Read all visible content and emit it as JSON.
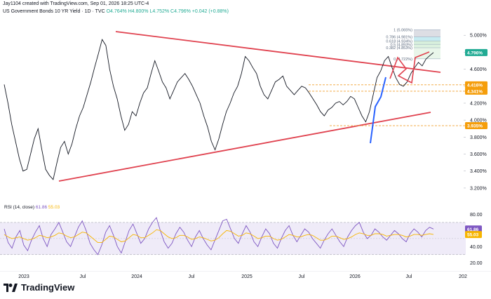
{
  "header": {
    "credit": "Jay1104 created with TradingView.com, Sep 01, 2026 18:25 UTC-4",
    "symbol": "US Government Bonds 10 YR Yield · 1D · TVC",
    "quote": "O4.764% H4.800% L4.752% C4.796% +0.042 (+0.88%)"
  },
  "rsi_legend": {
    "label": "RSI (14, close)",
    "value1": "61.86",
    "value2": "55.03"
  },
  "brand": {
    "name": "TradingView"
  },
  "colors": {
    "up": "#22ab94",
    "trendline": "#e0424f",
    "fib_line": "#f0a030",
    "rsi_line": "#7e57c2",
    "rsi_ma": "#f7b500",
    "price_tag": "#22ab94",
    "level_tag": "#f59e0b",
    "blue_wave": "#2962ff"
  },
  "chart_data": [
    {
      "type": "line",
      "title": "US Government Bonds 10 YR Yield",
      "xlabel": "",
      "ylabel": "",
      "ylim": [
        3.1,
        5.25
      ],
      "x_ticks": [
        "2023",
        "Jul",
        "2024",
        "Jul",
        "2025",
        "Jul",
        "2026",
        "Jul",
        "202"
      ],
      "y_ticks": [
        "5.000%",
        "4.800%",
        "4.600%",
        "4.400%",
        "4.200%",
        "4.000%",
        "3.800%",
        "3.600%",
        "3.400%",
        "3.200%"
      ],
      "series": [
        {
          "values": [
            4.42,
            4.2,
            3.95,
            3.75,
            3.55,
            3.4,
            3.42,
            3.6,
            3.78,
            3.9,
            3.65,
            3.42,
            3.35,
            3.3,
            3.5,
            3.68,
            3.75,
            3.6,
            3.72,
            3.9,
            4.05,
            4.15,
            4.3,
            4.45,
            4.62,
            4.78,
            4.95,
            4.88,
            4.6,
            4.4,
            4.25,
            4.05,
            3.88,
            3.95,
            4.1,
            4.05,
            4.2,
            4.32,
            4.38,
            4.55,
            4.7,
            4.58,
            4.45,
            4.38,
            4.25,
            4.35,
            4.45,
            4.5,
            4.55,
            4.48,
            4.4,
            4.3,
            4.2,
            4.05,
            3.92,
            3.75,
            3.65,
            3.78,
            3.95,
            4.1,
            4.2,
            4.32,
            4.4,
            4.55,
            4.75,
            4.7,
            4.62,
            4.55,
            4.4,
            4.3,
            4.25,
            4.35,
            4.45,
            4.48,
            4.52,
            4.4,
            4.35,
            4.3,
            4.35,
            4.4,
            4.38,
            4.32,
            4.25,
            4.18,
            4.1,
            4.05,
            4.12,
            4.15,
            4.2,
            4.22,
            4.18,
            4.22,
            4.28,
            4.25,
            4.15,
            4.05,
            3.98,
            4.1,
            4.3,
            4.5,
            4.58,
            4.7,
            4.75,
            4.62,
            4.5,
            4.42,
            4.4,
            4.45,
            4.55,
            4.62,
            4.68,
            4.64,
            4.72,
            4.76,
            4.796
          ]
        }
      ],
      "annotations": {
        "fib_levels": [
          {
            "label": "1 (5.065%)",
            "value": 5.065
          },
          {
            "label": "0.786 (4.981%)",
            "value": 4.981
          },
          {
            "label": "0.618 (4.934%)",
            "value": 4.934
          },
          {
            "label": "0.5 (4.893%)",
            "value": 4.893
          },
          {
            "label": "0.382 (4.853%)",
            "value": 4.853
          },
          {
            "label": "0 (4.722%)",
            "value": 4.722
          }
        ],
        "price_tags": [
          {
            "label": "4.796%",
            "value": 4.796,
            "kind": "last"
          },
          {
            "label": "4.416%",
            "value": 4.416,
            "kind": "level"
          },
          {
            "label": "4.341%",
            "value": 4.341,
            "kind": "level"
          },
          {
            "label": "3.935%",
            "value": 3.935,
            "kind": "level"
          }
        ]
      }
    },
    {
      "type": "line",
      "title": "RSI (14, close)",
      "ylim": [
        15,
        90
      ],
      "y_ticks": [
        "80.00",
        "40.00",
        "20.00"
      ],
      "bands": [
        30,
        70
      ],
      "series": [
        {
          "name": "RSI",
          "values": [
            62,
            45,
            38,
            52,
            60,
            42,
            35,
            48,
            58,
            66,
            50,
            40,
            55,
            62,
            70,
            58,
            46,
            40,
            52,
            64,
            72,
            60,
            44,
            36,
            30,
            42,
            58,
            66,
            54,
            40,
            32,
            46,
            60,
            68,
            56,
            44,
            50,
            62,
            70,
            76,
            60,
            46,
            38,
            44,
            56,
            64,
            58,
            48,
            40,
            52,
            60,
            50,
            42,
            36,
            48,
            60,
            72,
            74,
            62,
            50,
            44,
            56,
            66,
            58,
            46,
            40,
            52,
            62,
            56,
            44,
            38,
            50,
            60,
            66,
            54,
            46,
            54,
            62,
            58,
            50,
            44,
            38,
            48,
            56,
            62,
            54,
            46,
            40,
            52,
            60,
            66,
            70,
            58,
            50,
            54,
            62,
            58,
            52,
            48,
            54,
            60,
            56,
            50,
            46,
            56,
            62,
            58,
            52,
            60,
            64,
            61.86
          ]
        },
        {
          "name": "MA",
          "values": [
            55,
            52,
            50,
            51,
            52,
            50,
            48,
            49,
            51,
            54,
            53,
            51,
            52,
            54,
            57,
            56,
            53,
            51,
            52,
            55,
            58,
            57,
            53,
            49,
            45,
            45,
            49,
            53,
            52,
            49,
            46,
            47,
            51,
            55,
            54,
            51,
            51,
            54,
            57,
            61,
            60,
            56,
            52,
            50,
            51,
            54,
            54,
            52,
            49,
            50,
            52,
            51,
            49,
            47,
            48,
            51,
            56,
            60,
            59,
            56,
            53,
            54,
            57,
            56,
            53,
            50,
            51,
            53,
            53,
            50,
            48,
            49,
            52,
            55,
            54,
            52,
            52,
            54,
            55,
            54,
            51,
            48,
            48,
            50,
            53,
            53,
            51,
            49,
            50,
            52,
            55,
            57,
            56,
            54,
            54,
            56,
            56,
            55,
            53,
            54,
            55,
            55,
            54,
            52,
            53,
            55,
            55,
            54,
            55,
            56,
            55.03
          ]
        }
      ]
    }
  ]
}
